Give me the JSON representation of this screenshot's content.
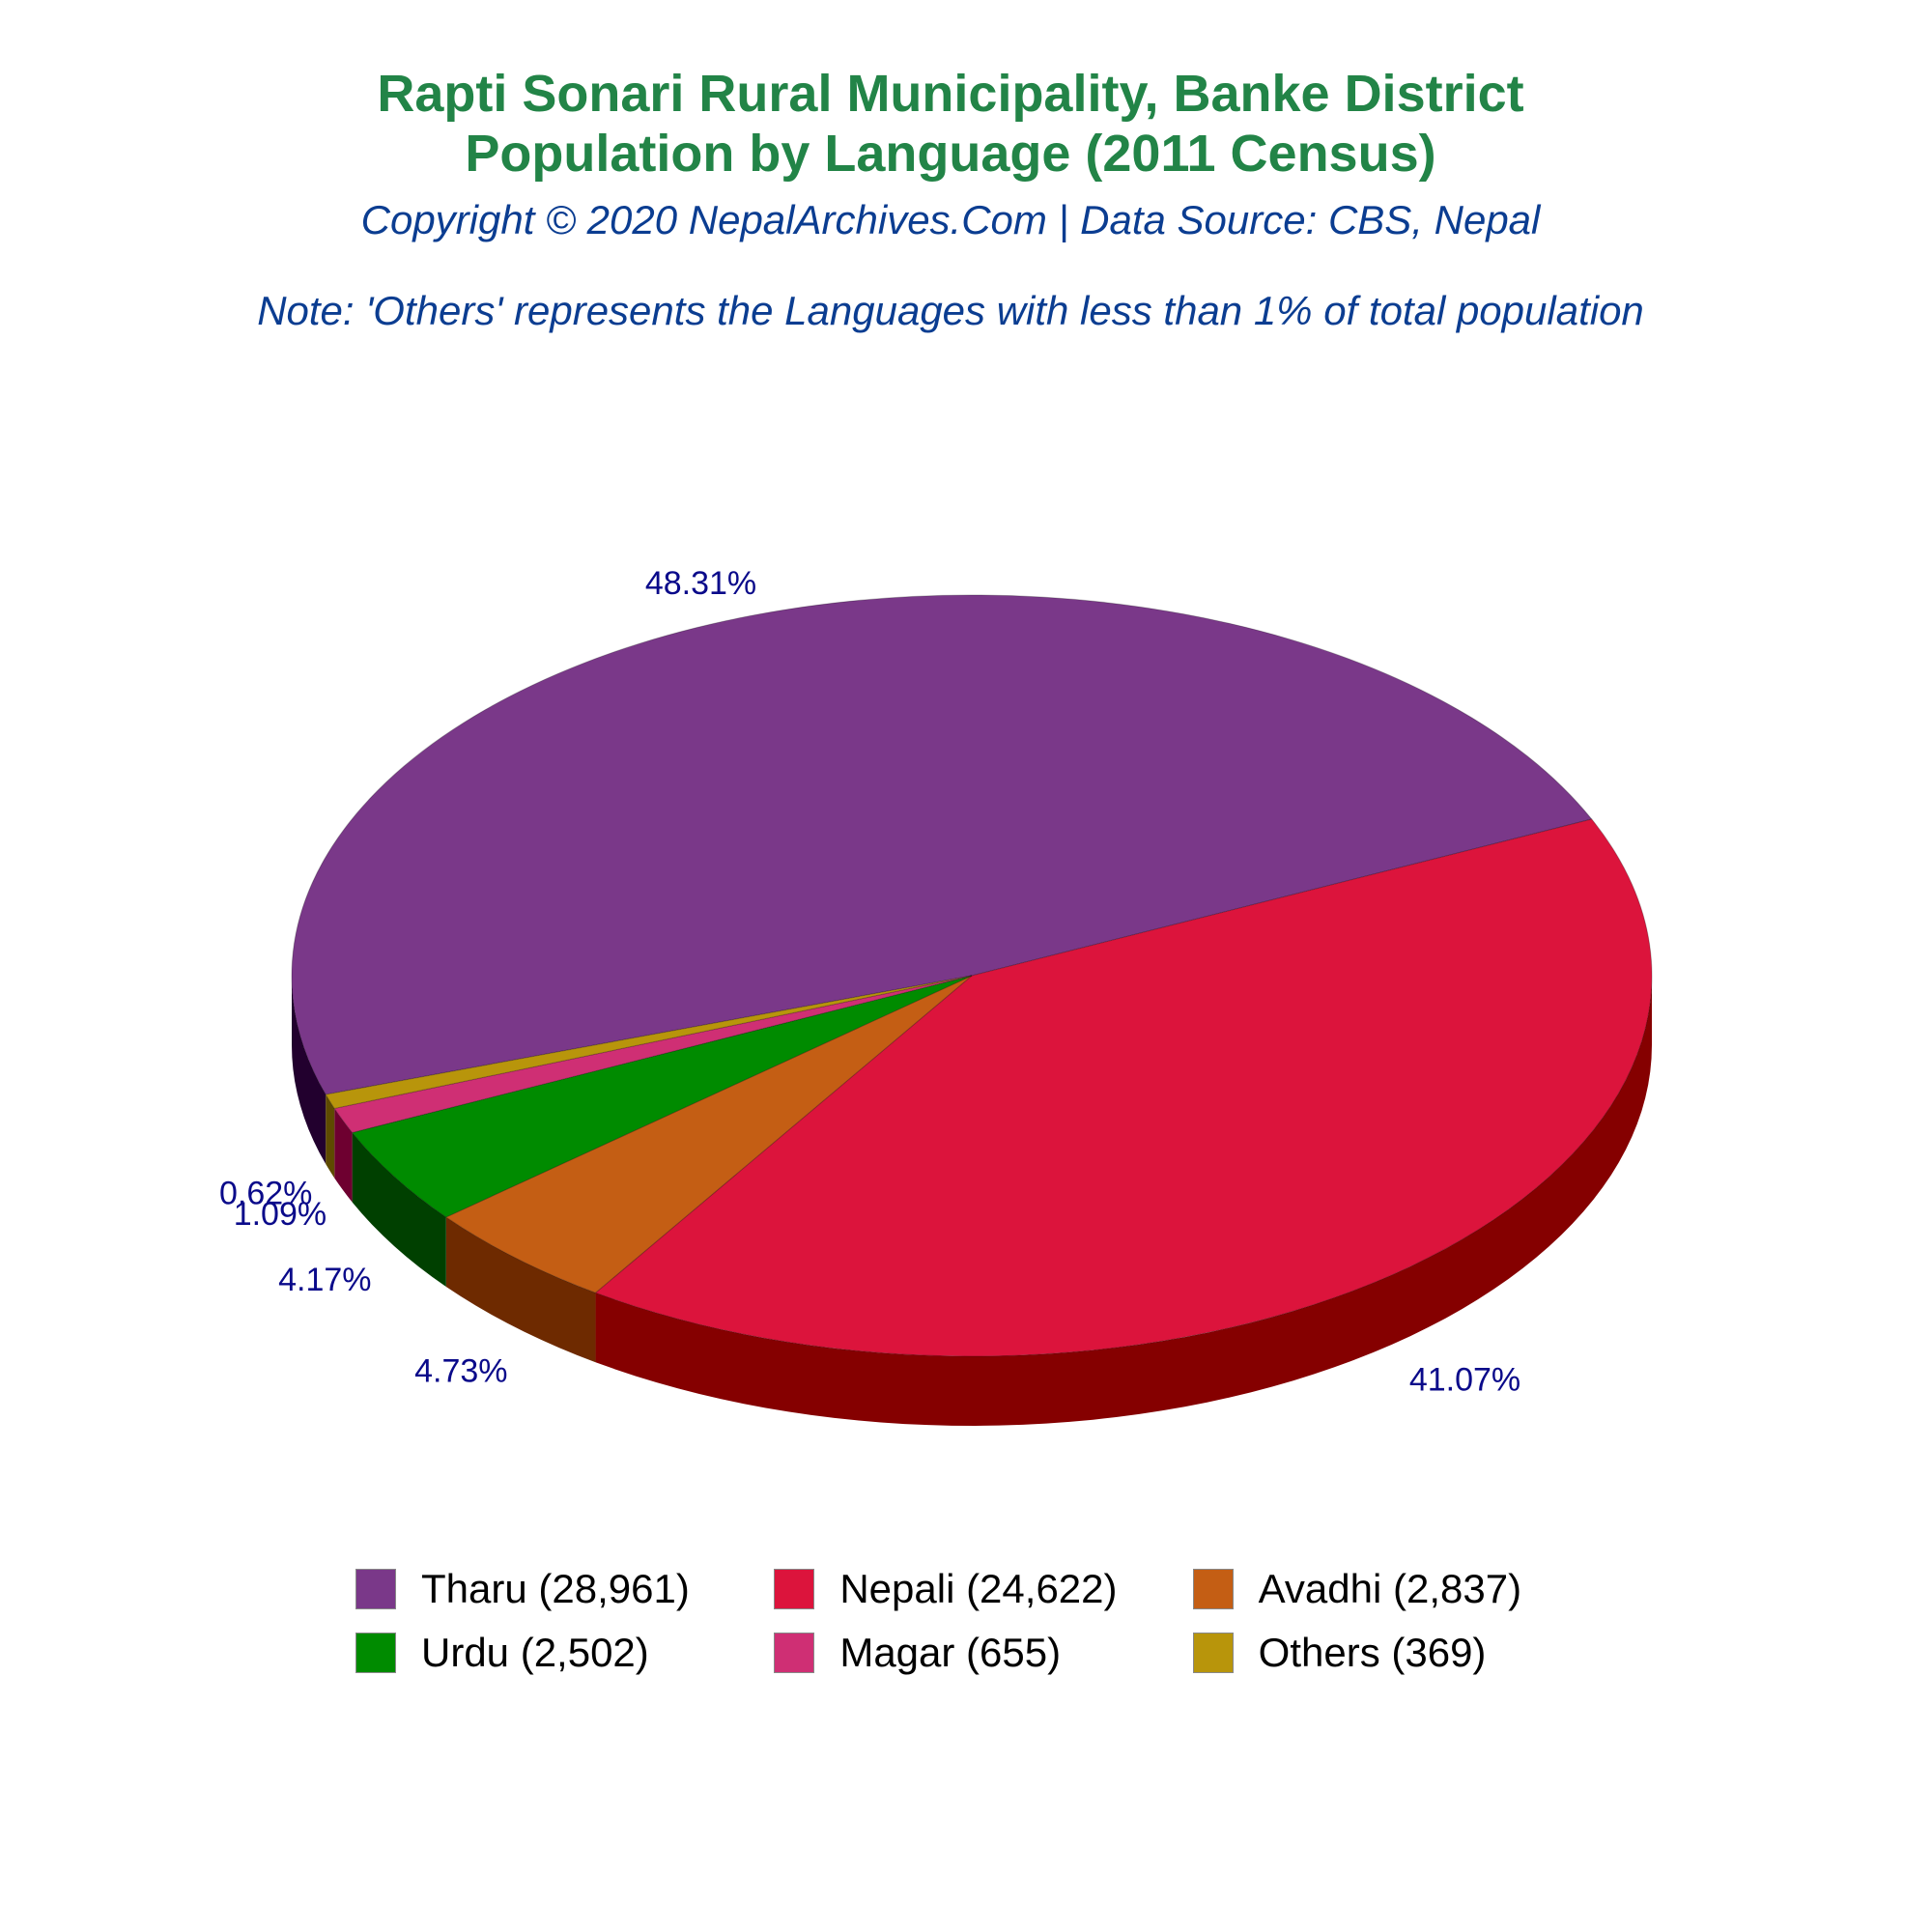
{
  "title_line1": "Rapti Sonari Rural Municipality, Banke District",
  "title_line2": "Population by Language (2011 Census)",
  "subtitle": "Copyright © 2020 NepalArchives.Com | Data Source: CBS, Nepal",
  "note": "Note: 'Others' represents the Languages with less than 1% of total population",
  "chart_data": {
    "type": "pie",
    "title": "Rapti Sonari Rural Municipality, Banke District Population by Language (2011 Census)",
    "slices": [
      {
        "label": "Tharu",
        "value": 28961,
        "percent_label": "48.31%",
        "legend": "Tharu (28,961)",
        "color": "#7a3889",
        "side_color": "#22002e"
      },
      {
        "label": "Nepali",
        "value": 24622,
        "percent_label": "41.07%",
        "legend": "Nepali (24,622)",
        "color": "#dc143c",
        "side_color": "#850000"
      },
      {
        "label": "Avadhi",
        "value": 2837,
        "percent_label": "4.73%",
        "legend": "Avadhi (2,837)",
        "color": "#c45e14",
        "side_color": "#6e2a00"
      },
      {
        "label": "Urdu",
        "value": 2502,
        "percent_label": "4.17%",
        "legend": "Urdu (2,502)",
        "color": "#008b00",
        "side_color": "#004000"
      },
      {
        "label": "Magar",
        "value": 655,
        "percent_label": "1.09%",
        "legend": "Magar (655)",
        "color": "#cf2f74",
        "side_color": "#6e0030"
      },
      {
        "label": "Others",
        "value": 369,
        "percent_label": "0.62%",
        "legend": "Others (369)",
        "color": "#b8950b",
        "side_color": "#5e4a00"
      }
    ],
    "legend_placement": "bottom"
  }
}
